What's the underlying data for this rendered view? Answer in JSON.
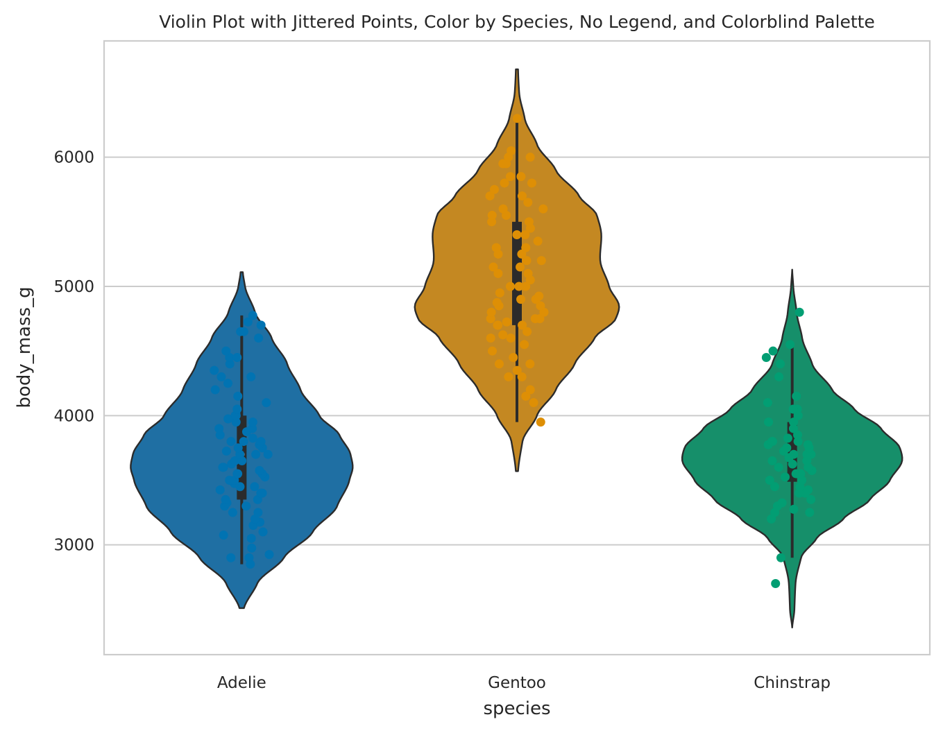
{
  "chart_data": {
    "type": "violin",
    "title": "Violin Plot with Jittered Points, Color by Species, No Legend, and Colorblind Palette",
    "xlabel": "species",
    "ylabel": "body_mass_g",
    "ylim": [
      2150,
      6900
    ],
    "yticks": [
      3000,
      4000,
      5000,
      6000
    ],
    "grid": "horizontal",
    "legend": "none",
    "categories": [
      "Adelie",
      "Gentoo",
      "Chinstrap"
    ],
    "series": [
      {
        "category": "Adelie",
        "violin_color": "#1f6fa3",
        "point_color": "#0173b2",
        "min": 2850,
        "q1": 3350,
        "median": 3700,
        "q3": 4000,
        "max": 4775,
        "kde_min": 2510,
        "kde_max": 5110,
        "density": [
          [
            2510,
            0.02
          ],
          [
            2700,
            0.14
          ],
          [
            2900,
            0.38
          ],
          [
            3100,
            0.64
          ],
          [
            3300,
            0.86
          ],
          [
            3500,
            0.97
          ],
          [
            3600,
            1.0
          ],
          [
            3700,
            0.98
          ],
          [
            3850,
            0.88
          ],
          [
            4000,
            0.7
          ],
          [
            4200,
            0.53
          ],
          [
            4400,
            0.41
          ],
          [
            4600,
            0.27
          ],
          [
            4800,
            0.12
          ],
          [
            5000,
            0.03
          ],
          [
            5110,
            0.01
          ]
        ],
        "points": [
          2850,
          2900,
          2900,
          2925,
          2975,
          3050,
          3075,
          3100,
          3150,
          3175,
          3200,
          3250,
          3250,
          3300,
          3300,
          3325,
          3350,
          3350,
          3400,
          3400,
          3425,
          3450,
          3450,
          3475,
          3500,
          3500,
          3525,
          3550,
          3550,
          3550,
          3575,
          3600,
          3600,
          3625,
          3650,
          3650,
          3700,
          3700,
          3700,
          3725,
          3750,
          3750,
          3775,
          3800,
          3800,
          3800,
          3825,
          3850,
          3875,
          3900,
          3900,
          3950,
          3950,
          3975,
          4000,
          4000,
          4050,
          4100,
          4150,
          4200,
          4250,
          4300,
          4300,
          4350,
          4400,
          4450,
          4450,
          4500,
          4600,
          4650,
          4650,
          4700,
          4725,
          4775
        ]
      },
      {
        "category": "Gentoo",
        "violin_color": "#c48822",
        "point_color": "#de8f05",
        "min": 3950,
        "q1": 4700,
        "median": 5000,
        "q3": 5500,
        "max": 6300,
        "kde_min": 3570,
        "kde_max": 6680,
        "density": [
          [
            3570,
            0.01
          ],
          [
            3800,
            0.05
          ],
          [
            4000,
            0.18
          ],
          [
            4200,
            0.35
          ],
          [
            4400,
            0.52
          ],
          [
            4600,
            0.7
          ],
          [
            4750,
            0.89
          ],
          [
            4850,
            0.92
          ],
          [
            5000,
            0.83
          ],
          [
            5200,
            0.75
          ],
          [
            5400,
            0.76
          ],
          [
            5550,
            0.72
          ],
          [
            5700,
            0.56
          ],
          [
            5900,
            0.35
          ],
          [
            6100,
            0.18
          ],
          [
            6300,
            0.07
          ],
          [
            6500,
            0.02
          ],
          [
            6680,
            0.01
          ]
        ],
        "points": [
          3950,
          4100,
          4150,
          4200,
          4300,
          4300,
          4350,
          4400,
          4400,
          4450,
          4500,
          4550,
          4600,
          4600,
          4625,
          4650,
          4700,
          4700,
          4700,
          4725,
          4750,
          4750,
          4750,
          4800,
          4800,
          4850,
          4850,
          4875,
          4900,
          4900,
          4925,
          4950,
          5000,
          5000,
          5000,
          5050,
          5100,
          5100,
          5150,
          5150,
          5200,
          5200,
          5250,
          5250,
          5300,
          5300,
          5350,
          5400,
          5400,
          5450,
          5500,
          5500,
          5550,
          5550,
          5600,
          5600,
          5650,
          5700,
          5700,
          5750,
          5800,
          5800,
          5850,
          5850,
          5950,
          5950,
          6000,
          6000,
          6050,
          6300
        ]
      },
      {
        "category": "Chinstrap",
        "violin_color": "#168f6a",
        "point_color": "#029e73",
        "min": 2900,
        "q1": 3488,
        "median": 3700,
        "q3": 3950,
        "max": 4550,
        "kde_min": 2360,
        "kde_max": 5130,
        "density": [
          [
            2360,
            0.0
          ],
          [
            2500,
            0.02
          ],
          [
            2700,
            0.03
          ],
          [
            2900,
            0.08
          ],
          [
            3050,
            0.22
          ],
          [
            3200,
            0.46
          ],
          [
            3350,
            0.7
          ],
          [
            3500,
            0.88
          ],
          [
            3650,
            0.99
          ],
          [
            3750,
            0.97
          ],
          [
            3900,
            0.8
          ],
          [
            4050,
            0.56
          ],
          [
            4200,
            0.36
          ],
          [
            4400,
            0.18
          ],
          [
            4600,
            0.09
          ],
          [
            4800,
            0.04
          ],
          [
            5000,
            0.01
          ],
          [
            5130,
            0.0
          ]
        ],
        "points": [
          2700,
          2900,
          3200,
          3250,
          3250,
          3275,
          3300,
          3325,
          3350,
          3400,
          3400,
          3425,
          3450,
          3450,
          3500,
          3500,
          3525,
          3550,
          3550,
          3575,
          3600,
          3600,
          3625,
          3650,
          3650,
          3675,
          3700,
          3700,
          3700,
          3725,
          3750,
          3750,
          3775,
          3775,
          3800,
          3800,
          3800,
          3825,
          3850,
          3900,
          3950,
          3950,
          4000,
          4050,
          4050,
          4100,
          4150,
          4300,
          4400,
          4450,
          4500,
          4550,
          4800
        ]
      }
    ]
  }
}
